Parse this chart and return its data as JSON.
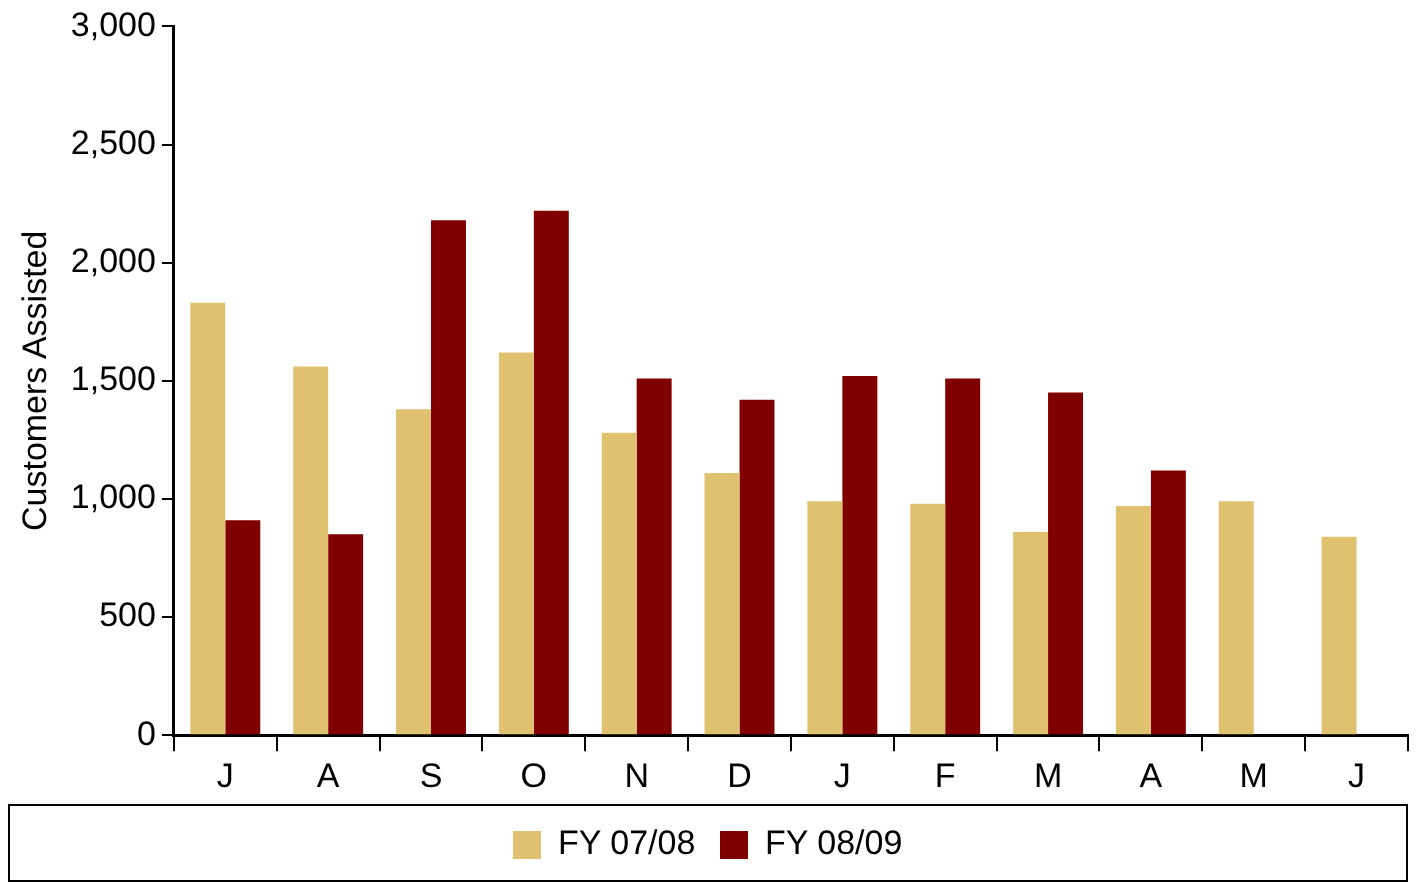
{
  "chart_data": {
    "type": "bar",
    "ylabel": "Customers Assisted",
    "categories": [
      "J",
      "A",
      "S",
      "O",
      "N",
      "D",
      "J",
      "F",
      "M",
      "A",
      "M",
      "J"
    ],
    "series": [
      {
        "name": "FY 07/08",
        "color": "#dfc170",
        "values": [
          1830,
          1560,
          1380,
          1620,
          1280,
          1110,
          990,
          980,
          860,
          970,
          990,
          840
        ]
      },
      {
        "name": "FY 08/09",
        "color": "#800000",
        "values": [
          910,
          850,
          2180,
          2220,
          1510,
          1420,
          1520,
          1510,
          1450,
          1120,
          null,
          null
        ]
      }
    ],
    "ylim": [
      0,
      3000
    ],
    "yticks": [
      {
        "value": 0,
        "label": "0"
      },
      {
        "value": 500,
        "label": "500"
      },
      {
        "value": 1000,
        "label": "1,000"
      },
      {
        "value": 1500,
        "label": "1,500"
      },
      {
        "value": 2000,
        "label": "2,000"
      },
      {
        "value": 2500,
        "label": "2,500"
      },
      {
        "value": 3000,
        "label": "3,000"
      }
    ],
    "grid": false,
    "legend": "bottom"
  }
}
